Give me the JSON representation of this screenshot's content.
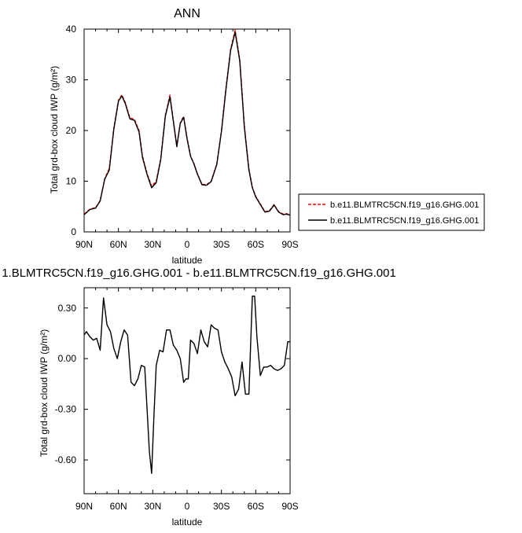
{
  "chart_data": [
    {
      "type": "line",
      "title": "ANN",
      "xlabel": "latitude",
      "ylabel": "Total grd-box cloud IWP (g/m²)",
      "x_tick_labels": [
        "90N",
        "60N",
        "30N",
        "0",
        "30S",
        "60S",
        "90S"
      ],
      "x_tick_values": [
        90,
        60,
        30,
        0,
        -30,
        -60,
        -90
      ],
      "xlim": [
        90,
        -90
      ],
      "y_ticks": [
        0,
        10,
        20,
        30,
        40
      ],
      "y_tick_labels": [
        "0",
        "10",
        "20",
        "30",
        "40"
      ],
      "ylim": [
        0,
        40
      ],
      "legend_placement": "right",
      "x": [
        90,
        85,
        80,
        76,
        72,
        68,
        64,
        60,
        57,
        54,
        50,
        46,
        42,
        39,
        35,
        31,
        27,
        23,
        19,
        15,
        12,
        9,
        6,
        3,
        0,
        -3,
        -6,
        -9,
        -13,
        -17,
        -21,
        -26,
        -30,
        -34,
        -38,
        -42,
        -46,
        -50,
        -54,
        -57,
        -60,
        -64,
        -68,
        -72,
        -76,
        -80,
        -84,
        -87,
        -90
      ],
      "series": [
        {
          "name": "b.e11.BLMTRC5CN.f19_g16.GHG.001",
          "color": "#ff0000",
          "dash": "dashed",
          "values": [
            3.5,
            4.5,
            4.8,
            6.2,
            10.5,
            12.5,
            20.5,
            26,
            27,
            25.5,
            22.5,
            22.2,
            20,
            15,
            11.5,
            9,
            10,
            14.5,
            23,
            27,
            22,
            17,
            21.5,
            22.8,
            18.5,
            15,
            13.5,
            11.5,
            9.4,
            9.3,
            10,
            13.5,
            20,
            28.5,
            36,
            39.8,
            34,
            21,
            12.5,
            8.8,
            7,
            5.5,
            4,
            4.2,
            5.4,
            4.0,
            3.5,
            3.6,
            3.4
          ]
        },
        {
          "name": "b.e11.BLMTRC5CN.f19_g16.GHG.001",
          "color": "#000000",
          "dash": "solid",
          "values": [
            3.4,
            4.4,
            4.7,
            6.1,
            10.4,
            12.2,
            20.3,
            25.8,
            26.8,
            25.3,
            22.3,
            22.0,
            19.7,
            14.7,
            11.3,
            8.7,
            9.7,
            14.3,
            22.8,
            26.6,
            21.8,
            16.8,
            21.4,
            22.6,
            18.3,
            14.9,
            13.4,
            11.4,
            9.3,
            9.2,
            9.9,
            13.3,
            19.8,
            28.2,
            35.7,
            39.4,
            33.7,
            20.7,
            12.2,
            8.7,
            6.9,
            5.4,
            3.9,
            4.1,
            5.3,
            3.9,
            3.4,
            3.5,
            3.3
          ]
        }
      ]
    },
    {
      "type": "line",
      "title": "1.BLMTRC5CN.f19_g16.GHG.001 - b.e11.BLMTRC5CN.f19_g16.GHG.001",
      "xlabel": "latitude",
      "ylabel": "Total grd-box cloud IWP (g/m²)",
      "x_tick_labels": [
        "90N",
        "60N",
        "30N",
        "0",
        "30S",
        "60S",
        "90S"
      ],
      "x_tick_values": [
        90,
        60,
        30,
        0,
        -30,
        -60,
        -90
      ],
      "xlim": [
        90,
        -90
      ],
      "y_ticks": [
        -0.6,
        -0.3,
        0.0,
        0.3
      ],
      "y_tick_labels": [
        "-0.60",
        "-0.30",
        "0.00",
        "0.30"
      ],
      "ylim": [
        -0.8,
        0.42
      ],
      "x": [
        90,
        88,
        85,
        82,
        79,
        76,
        73,
        70,
        67,
        64,
        61,
        58,
        55,
        52,
        49,
        46,
        43,
        40,
        37,
        35,
        33,
        31,
        29,
        27,
        24,
        21,
        18,
        15,
        12,
        9,
        6,
        3,
        1,
        -1,
        -3,
        -6,
        -9,
        -12,
        -15,
        -18,
        -21,
        -24,
        -27,
        -30,
        -33,
        -36,
        -39,
        -42,
        -45,
        -48,
        -51,
        -54,
        -57,
        -59,
        -61,
        -64,
        -67,
        -70,
        -73,
        -76,
        -79,
        -82,
        -85,
        -88,
        -90
      ],
      "series": [
        {
          "name": "",
          "color": "#000000",
          "dash": "solid",
          "values": [
            0.14,
            0.16,
            0.13,
            0.11,
            0.12,
            0.05,
            0.36,
            0.2,
            0.16,
            0.06,
            0.0,
            0.1,
            0.17,
            0.14,
            -0.14,
            -0.16,
            -0.12,
            -0.04,
            -0.05,
            -0.3,
            -0.55,
            -0.68,
            -0.34,
            -0.04,
            0.05,
            0.04,
            0.17,
            0.17,
            0.08,
            0.05,
            0.0,
            -0.14,
            -0.12,
            -0.12,
            0.11,
            0.09,
            0.03,
            0.17,
            0.1,
            0.07,
            0.2,
            0.18,
            0.17,
            0.04,
            -0.02,
            -0.06,
            -0.11,
            -0.22,
            -0.18,
            -0.02,
            -0.21,
            -0.21,
            0.37,
            0.37,
            0.13,
            -0.1,
            -0.05,
            -0.05,
            -0.04,
            -0.06,
            -0.07,
            -0.06,
            -0.04,
            0.1,
            0.1
          ]
        }
      ]
    }
  ]
}
